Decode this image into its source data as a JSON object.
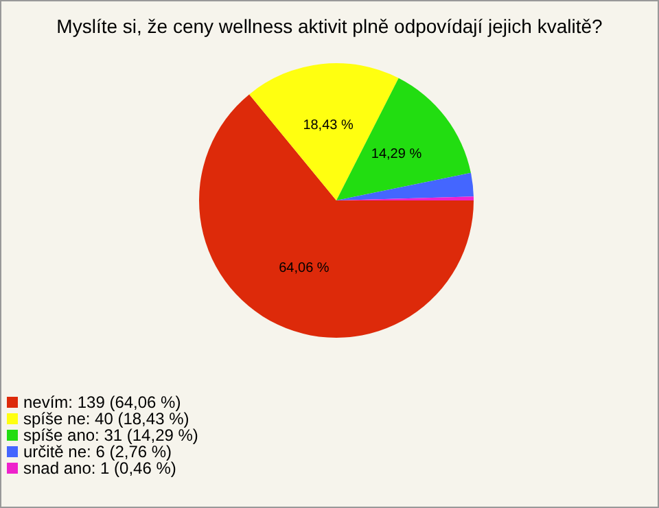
{
  "chart_data": {
    "type": "pie",
    "title": "Myslíte si, že ceny wellness aktivit plně odpovídají jejich kvalitě?",
    "categories": [
      "nevím: 139 (64,06 %)",
      "spíše ne: 40 (18,43 %)",
      "spíše ano: 31 (14,29 %)",
      "určitě ne: 6 (2,76 %)",
      "snad ano: 1 (0,46 %)"
    ],
    "values": [
      64.06,
      18.43,
      14.29,
      2.76,
      0.46
    ],
    "value_labels": [
      "64,06 %",
      "18,43 %",
      "14,29 %",
      null,
      null
    ],
    "colors": [
      "#dd2a0a",
      "#ffff10",
      "#22dd11",
      "#4466ff",
      "#ee22cc"
    ],
    "legend": "bottom left"
  }
}
